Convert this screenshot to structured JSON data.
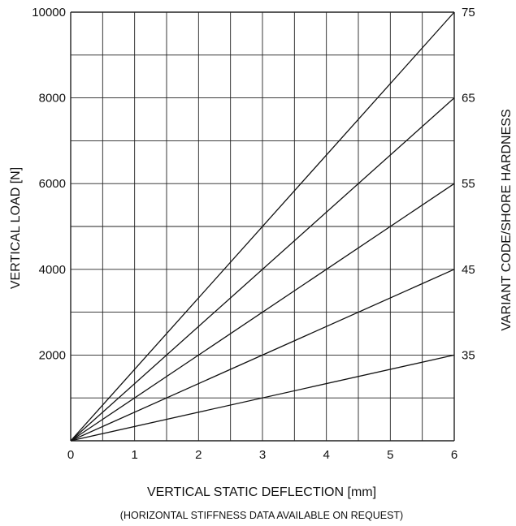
{
  "chart_data": {
    "type": "line",
    "title": "",
    "xlabel": "VERTICAL STATIC DEFLECTION [mm]",
    "ylabel": "VERTICAL LOAD [N]",
    "y2label": "VARIANT CODE/SHORE HARDNESS",
    "note": "(HORIZONTAL STIFFNESS DATA AVAILABLE ON REQUEST)",
    "xlim": [
      0,
      6
    ],
    "ylim": [
      0,
      10000
    ],
    "xticks": [
      "0",
      "1",
      "2",
      "3",
      "4",
      "5",
      "6"
    ],
    "yticks": [
      {
        "value": 2000,
        "label": "2000"
      },
      {
        "value": 4000,
        "label": "4000"
      },
      {
        "value": 6000,
        "label": "6000"
      },
      {
        "value": 8000,
        "label": "8000"
      },
      {
        "value": 10000,
        "label": "10000"
      }
    ],
    "grid": true,
    "series": [
      {
        "name": "35",
        "x": [
          0,
          6
        ],
        "y": [
          0,
          2000
        ]
      },
      {
        "name": "45",
        "x": [
          0,
          6
        ],
        "y": [
          0,
          4000
        ]
      },
      {
        "name": "55",
        "x": [
          0,
          6
        ],
        "y": [
          0,
          6000
        ]
      },
      {
        "name": "65",
        "x": [
          0,
          6
        ],
        "y": [
          0,
          8000
        ]
      },
      {
        "name": "75",
        "x": [
          0,
          6
        ],
        "y": [
          0,
          10000
        ]
      }
    ],
    "colors": {
      "line": "#111111",
      "grid": "#222222"
    }
  }
}
